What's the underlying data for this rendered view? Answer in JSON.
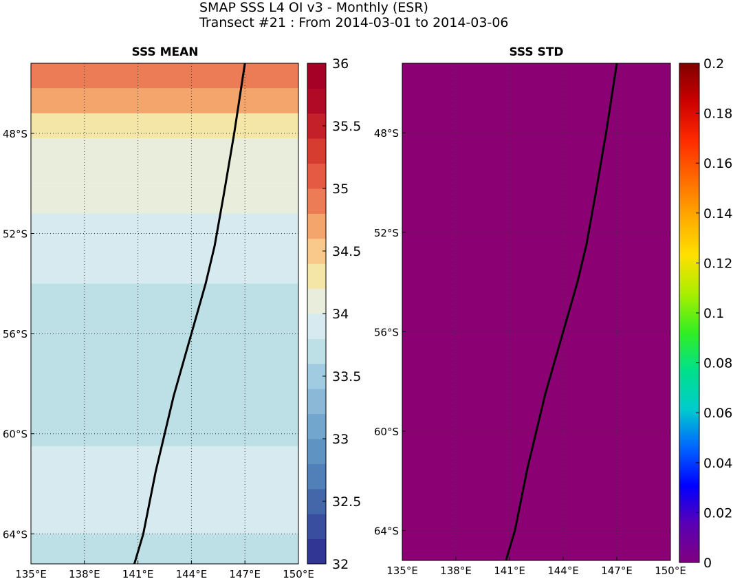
{
  "figure": {
    "title": "SMAP SSS L4 OI v3 - Monthly (ESR)",
    "subtitle": "Transect #21 : From 2014-03-01 to 2014-03-06"
  },
  "colors": {
    "std_field": "#8b0072",
    "transect": "#000000",
    "mean_palette": [
      "#313695",
      "#3a4e9f",
      "#4467a9",
      "#5080b7",
      "#5f93c2",
      "#73a6cd",
      "#8bb8d6",
      "#a0cbe1",
      "#bddfe6",
      "#d6eaef",
      "#e8eedb",
      "#f4e6a6",
      "#f8c98a",
      "#f4a56b",
      "#ec7c55",
      "#e45a43",
      "#d73c30",
      "#c42029",
      "#b10a26",
      "#a50026"
    ],
    "std_palette": [
      "#800080",
      "#5a00b4",
      "#0000ff",
      "#0066ff",
      "#00cccc",
      "#00e08a",
      "#33ee22",
      "#aaee00",
      "#ffe000",
      "#ffaa00",
      "#ff6a00",
      "#ff2a00",
      "#cc0000",
      "#800000"
    ]
  },
  "chart_data": [
    {
      "type": "heatmap",
      "title": "SSS MEAN",
      "x_ticks": [
        "135°E",
        "138°E",
        "141°E",
        "144°E",
        "147°E",
        "150°E"
      ],
      "x_tick_values": [
        135,
        138,
        141,
        144,
        147,
        150
      ],
      "y_ticks": [
        "48°S",
        "52°S",
        "56°S",
        "60°S",
        "64°S"
      ],
      "y_tick_values": [
        -48,
        -52,
        -56,
        -60,
        -64
      ],
      "xlim": [
        135,
        150
      ],
      "ylim": [
        -65.2,
        -45.2
      ],
      "grid": true,
      "colorbar": {
        "range": [
          32,
          36
        ],
        "levels": 20,
        "ticks": [
          "32",
          "32.5",
          "33",
          "33.5",
          "34",
          "34.5",
          "35",
          "35.5",
          "36"
        ],
        "tick_values": [
          32,
          32.5,
          33,
          33.5,
          34,
          34.5,
          35,
          35.5,
          36
        ]
      },
      "salinity_by_latitude": [
        {
          "lat_from": -45.2,
          "lat_to": -46.2,
          "value": 34.95
        },
        {
          "lat_from": -46.2,
          "lat_to": -47.2,
          "value": 34.65
        },
        {
          "lat_from": -47.2,
          "lat_to": -48.2,
          "value": 34.4
        },
        {
          "lat_from": -48.2,
          "lat_to": -50.0,
          "value": 34.1
        },
        {
          "lat_from": -50.0,
          "lat_to": -51.2,
          "value": 34.05
        },
        {
          "lat_from": -51.2,
          "lat_to": -54.0,
          "value": 33.9
        },
        {
          "lat_from": -54.0,
          "lat_to": -60.5,
          "value": 33.75
        },
        {
          "lat_from": -60.5,
          "lat_to": -64.0,
          "value": 33.9
        },
        {
          "lat_from": -64.0,
          "lat_to": -65.2,
          "value": 33.6
        }
      ],
      "transect": {
        "lon": [
          147.0,
          146.4,
          145.8,
          145.3,
          144.8,
          144.0,
          143.0,
          142.0,
          141.3,
          140.8
        ],
        "lat": [
          -45.2,
          -48.0,
          -50.5,
          -52.5,
          -54.0,
          -56.0,
          -58.5,
          -61.5,
          -64.0,
          -65.2
        ]
      }
    },
    {
      "type": "heatmap",
      "title": "SSS STD",
      "x_ticks": [
        "135°E",
        "138°E",
        "141°E",
        "144°E",
        "147°E",
        "150°E"
      ],
      "x_tick_values": [
        135,
        138,
        141,
        144,
        147,
        150
      ],
      "y_ticks": [
        "48°S",
        "52°S",
        "56°S",
        "60°S",
        "64°S"
      ],
      "y_tick_values": [
        -48,
        -52,
        -56,
        -60,
        -64
      ],
      "xlim": [
        135,
        150
      ],
      "ylim": [
        -65.2,
        -45.2
      ],
      "grid": true,
      "field_value": 0,
      "colorbar": {
        "range": [
          0,
          0.2
        ],
        "ticks": [
          "0",
          "0.02",
          "0.04",
          "0.06",
          "0.08",
          "0.1",
          "0.12",
          "0.14",
          "0.16",
          "0.18",
          "0.2"
        ],
        "tick_values": [
          0,
          0.02,
          0.04,
          0.06,
          0.08,
          0.1,
          0.12,
          0.14,
          0.16,
          0.18,
          0.2
        ]
      },
      "transect": {
        "lon": [
          147.0,
          146.4,
          145.8,
          145.3,
          144.8,
          144.0,
          143.0,
          142.0,
          141.3,
          140.8
        ],
        "lat": [
          -45.2,
          -48.0,
          -50.5,
          -52.5,
          -54.0,
          -56.0,
          -58.5,
          -61.5,
          -64.0,
          -65.2
        ]
      }
    }
  ]
}
